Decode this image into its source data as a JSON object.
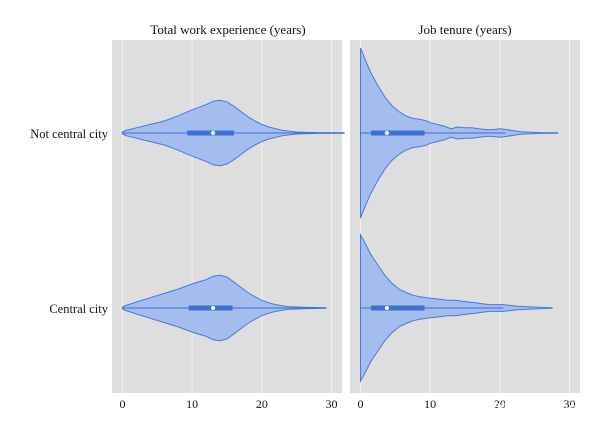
{
  "chart_data": {
    "type": "violin",
    "watermark": "知乎 @Mr Figurant",
    "rows": [
      "Not central city",
      "Central city"
    ],
    "axis": {
      "ticks": [
        0,
        10,
        20,
        30
      ],
      "xlim": [
        -1.5,
        31.5
      ],
      "grid": true
    },
    "colors": {
      "violin_fill": "#a4bdee",
      "violin_stroke": "#4a78d6",
      "box": "#3d6fd4",
      "median": "#ffffff",
      "panel_bg": "#dedede",
      "gridline": "#f2f2f2"
    },
    "panels": [
      {
        "title": "Total work experience (years)",
        "violins": [
          {
            "row": "Not central city",
            "min": 0,
            "max": 31.8,
            "q1": 9.3,
            "median": 13.0,
            "q3": 16.0,
            "whisker_low": 0,
            "whisker_high": 31.8,
            "density": [
              [
                0,
                0.01
              ],
              [
                0.5,
                0.03
              ],
              [
                2,
                0.06
              ],
              [
                4,
                0.1
              ],
              [
                6,
                0.14
              ],
              [
                8,
                0.2
              ],
              [
                10,
                0.27
              ],
              [
                12,
                0.33
              ],
              [
                13,
                0.37
              ],
              [
                14,
                0.38
              ],
              [
                15,
                0.36
              ],
              [
                16,
                0.31
              ],
              [
                17,
                0.25
              ],
              [
                18,
                0.19
              ],
              [
                19,
                0.14
              ],
              [
                20,
                0.1
              ],
              [
                21,
                0.07
              ],
              [
                22,
                0.05
              ],
              [
                23,
                0.03
              ],
              [
                24,
                0.02
              ],
              [
                25,
                0.012
              ],
              [
                26,
                0.008
              ],
              [
                28,
                0.005
              ],
              [
                31.8,
                0.003
              ]
            ]
          },
          {
            "row": "Central city",
            "min": 0,
            "max": 29.2,
            "q1": 9.5,
            "median": 13.0,
            "q3": 15.8,
            "whisker_low": 0,
            "whisker_high": 29.2,
            "density": [
              [
                0,
                0.01
              ],
              [
                0.5,
                0.03
              ],
              [
                2,
                0.07
              ],
              [
                4,
                0.12
              ],
              [
                6,
                0.17
              ],
              [
                8,
                0.22
              ],
              [
                10,
                0.28
              ],
              [
                12,
                0.33
              ],
              [
                13,
                0.37
              ],
              [
                14,
                0.38
              ],
              [
                15,
                0.36
              ],
              [
                16,
                0.3
              ],
              [
                17,
                0.24
              ],
              [
                18,
                0.18
              ],
              [
                19,
                0.13
              ],
              [
                20,
                0.09
              ],
              [
                21,
                0.06
              ],
              [
                22,
                0.04
              ],
              [
                23,
                0.025
              ],
              [
                24,
                0.015
              ],
              [
                26,
                0.008
              ],
              [
                29.2,
                0.003
              ]
            ]
          }
        ]
      },
      {
        "title": "Job tenure (years)",
        "violins": [
          {
            "row": "Not central city",
            "min": 0,
            "max": 28.3,
            "q1": 1.5,
            "median": 3.8,
            "q3": 9.2,
            "whisker_low": 0,
            "whisker_high": 20.8,
            "density": [
              [
                0,
                0.99
              ],
              [
                0.7,
                0.85
              ],
              [
                1.5,
                0.7
              ],
              [
                2.5,
                0.55
              ],
              [
                3.5,
                0.42
              ],
              [
                4.5,
                0.32
              ],
              [
                5.5,
                0.25
              ],
              [
                6.5,
                0.2
              ],
              [
                7.5,
                0.17
              ],
              [
                8.5,
                0.16
              ],
              [
                9.5,
                0.14
              ],
              [
                10,
                0.12
              ],
              [
                11,
                0.1
              ],
              [
                12,
                0.08
              ],
              [
                13,
                0.05
              ],
              [
                14,
                0.07
              ],
              [
                15,
                0.06
              ],
              [
                16,
                0.06
              ],
              [
                17,
                0.05
              ],
              [
                18,
                0.04
              ],
              [
                19,
                0.04
              ],
              [
                20,
                0.05
              ],
              [
                21,
                0.04
              ],
              [
                22,
                0.025
              ],
              [
                23,
                0.015
              ],
              [
                24,
                0.01
              ],
              [
                26,
                0.005
              ],
              [
                28.3,
                0.003
              ]
            ]
          },
          {
            "row": "Central city",
            "min": 0,
            "max": 27.5,
            "q1": 1.5,
            "median": 3.8,
            "q3": 9.2,
            "whisker_low": 0,
            "whisker_high": 20.5,
            "density": [
              [
                0,
                0.85
              ],
              [
                0.7,
                0.75
              ],
              [
                1.5,
                0.62
              ],
              [
                2.5,
                0.5
              ],
              [
                3.5,
                0.38
              ],
              [
                4.5,
                0.29
              ],
              [
                5.5,
                0.22
              ],
              [
                6.5,
                0.18
              ],
              [
                7.5,
                0.15
              ],
              [
                8.5,
                0.13
              ],
              [
                9.5,
                0.12
              ],
              [
                10.5,
                0.11
              ],
              [
                11.5,
                0.1
              ],
              [
                12.5,
                0.09
              ],
              [
                13.5,
                0.09
              ],
              [
                14.5,
                0.08
              ],
              [
                15.5,
                0.07
              ],
              [
                16.5,
                0.06
              ],
              [
                17.5,
                0.05
              ],
              [
                18.5,
                0.04
              ],
              [
                19.5,
                0.04
              ],
              [
                20.5,
                0.04
              ],
              [
                21.5,
                0.03
              ],
              [
                22.5,
                0.02
              ],
              [
                24,
                0.015
              ],
              [
                26,
                0.007
              ],
              [
                27.5,
                0.003
              ]
            ]
          }
        ]
      }
    ]
  }
}
